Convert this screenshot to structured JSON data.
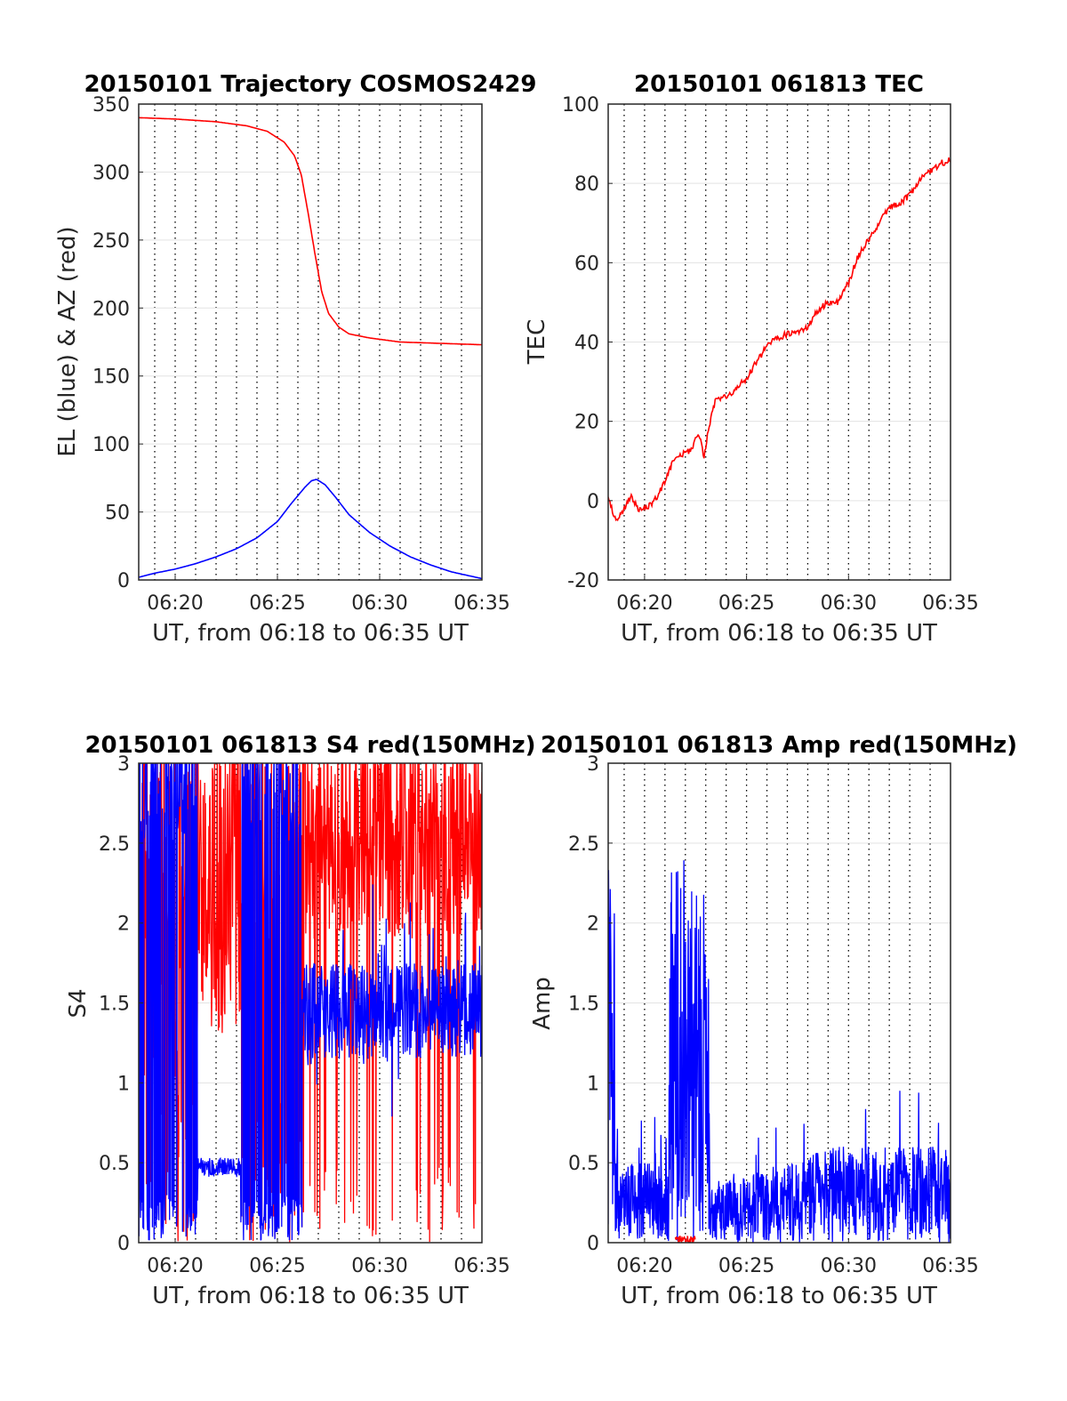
{
  "chart_data": [
    {
      "type": "line",
      "title": "20150101 Trajectory COSMOS2429",
      "xlabel": "UT, from 06:18 to 06:35 UT",
      "ylabel": "EL (blue) & AZ (red)",
      "xlim": [
        "06:18:13",
        "06:35:00"
      ],
      "ylim": [
        0,
        350
      ],
      "xticks": [
        "06:20",
        "06:25",
        "06:30",
        "06:35"
      ],
      "yticks": [
        "0",
        "50",
        "100",
        "150",
        "200",
        "250",
        "300",
        "350"
      ],
      "grid": "vertical dotted lines every minute, horizontal gridlines at y ticks",
      "series": [
        {
          "color": "#ff0000",
          "x": [
            "06:18:13",
            "06:20:00",
            "06:22:00",
            "06:23:30",
            "06:24:30",
            "06:25:20",
            "06:25:50",
            "06:26:10",
            "06:26:30",
            "06:26:50",
            "06:27:10",
            "06:27:30",
            "06:28:00",
            "06:28:30",
            "06:29:30",
            "06:31:00",
            "06:33:00",
            "06:35:00"
          ],
          "y": [
            340,
            339,
            337,
            334,
            330,
            322,
            312,
            298,
            270,
            240,
            212,
            196,
            186,
            181,
            178,
            175,
            174,
            173
          ]
        },
        {
          "color": "#0000ff",
          "x": [
            "06:18:13",
            "06:19:00",
            "06:20:00",
            "06:21:00",
            "06:22:00",
            "06:23:00",
            "06:24:00",
            "06:25:00",
            "06:25:40",
            "06:26:20",
            "06:26:40",
            "06:26:55",
            "06:27:20",
            "06:27:50",
            "06:28:30",
            "06:29:30",
            "06:30:30",
            "06:31:30",
            "06:32:30",
            "06:33:30",
            "06:35:00"
          ],
          "y": [
            2,
            5,
            8,
            12,
            17,
            23,
            31,
            43,
            56,
            68,
            73,
            74,
            70,
            61,
            48,
            35,
            25,
            17,
            11,
            6,
            1
          ]
        }
      ]
    },
    {
      "type": "line",
      "title": "20150101 061813 TEC",
      "xlabel": "UT, from 06:18 to 06:35 UT",
      "ylabel": "TEC",
      "xlim": [
        "06:18:13",
        "06:35:00"
      ],
      "ylim": [
        -20,
        100
      ],
      "xticks": [
        "06:20",
        "06:25",
        "06:30",
        "06:35"
      ],
      "yticks": [
        "-20",
        "0",
        "20",
        "40",
        "60",
        "80",
        "100"
      ],
      "grid": "vertical dotted lines every minute, horizontal gridlines at y ticks",
      "series": [
        {
          "color": "#ff0000",
          "x": [
            "06:18:13",
            "06:18:35",
            "06:19:00",
            "06:19:20",
            "06:19:40",
            "06:20:00",
            "06:20:30",
            "06:21:00",
            "06:21:30",
            "06:22:00",
            "06:22:20",
            "06:22:35",
            "06:22:45",
            "06:22:55",
            "06:23:10",
            "06:23:30",
            "06:24:00",
            "06:24:30",
            "06:25:00",
            "06:25:30",
            "06:26:00",
            "06:26:30",
            "06:27:00",
            "06:27:30",
            "06:28:00",
            "06:28:30",
            "06:29:00",
            "06:29:30",
            "06:30:00",
            "06:30:30",
            "06:31:00",
            "06:31:30",
            "06:32:00",
            "06:32:30",
            "06:33:00",
            "06:33:30",
            "06:34:00",
            "06:34:30",
            "06:35:00"
          ],
          "y": [
            1,
            -5,
            -2,
            1,
            -2,
            -2,
            0,
            5,
            11,
            12,
            13,
            17,
            15,
            11,
            19,
            26,
            26,
            28,
            31,
            35,
            39,
            41,
            42,
            42,
            44,
            48,
            50,
            50,
            55,
            62,
            66,
            70,
            74,
            75,
            77,
            81,
            83,
            85,
            86
          ]
        }
      ]
    },
    {
      "type": "line",
      "title": "20150101 061813 S4 red(150MHz)",
      "xlabel": "UT, from 06:18 to 06:35 UT",
      "ylabel": "S4",
      "xlim": [
        "06:18:13",
        "06:35:00"
      ],
      "ylim": [
        0,
        3
      ],
      "xticks": [
        "06:20",
        "06:25",
        "06:30",
        "06:35"
      ],
      "yticks": [
        "0",
        "0.5",
        "1",
        "1.5",
        "2",
        "2.5",
        "3"
      ],
      "grid": "vertical dotted lines every minute, horizontal gridlines at y ticks",
      "series": [
        {
          "color": "#ff0000",
          "description_levels": {
            "06:18-06:21": "saturated 0-3",
            "06:21-06:23": "1.3-3",
            "06:23-06:26": "saturated 0-3",
            "06:26-06:35": "mostly 2-3 with drops to 0"
          }
        },
        {
          "color": "#0000ff",
          "description_levels": {
            "06:18-06:21": "saturated 0-3",
            "06:21-06:23": "0.5",
            "06:23-06:26": "saturated 0-3",
            "06:26-06:35": "1.2-2.0"
          }
        }
      ]
    },
    {
      "type": "line",
      "title": "20150101 061813 Amp red(150MHz)",
      "xlabel": "UT, from 06:18 to 06:35 UT",
      "ylabel": "Amp",
      "xlim": [
        "06:18:13",
        "06:35:00"
      ],
      "ylim": [
        0,
        3
      ],
      "xticks": [
        "06:20",
        "06:25",
        "06:30",
        "06:35"
      ],
      "yticks": [
        "0",
        "0.5",
        "1",
        "1.5",
        "2",
        "2.5",
        "3"
      ],
      "grid": "vertical dotted lines every minute, horizontal gridlines at y ticks",
      "series": [
        {
          "color": "#0000ff",
          "description_levels": {
            "06:18:13-06:18:30": "up to 2.5",
            "06:18-06:21": "0-0.5",
            "06:21-06:23": "up to 2.7",
            "06:23-06:35": "0-0.8, peaks near 1"
          }
        },
        {
          "color": "#ff0000",
          "description_levels": {
            "06:21:30-06:22:30": "near 0"
          }
        }
      ]
    }
  ]
}
